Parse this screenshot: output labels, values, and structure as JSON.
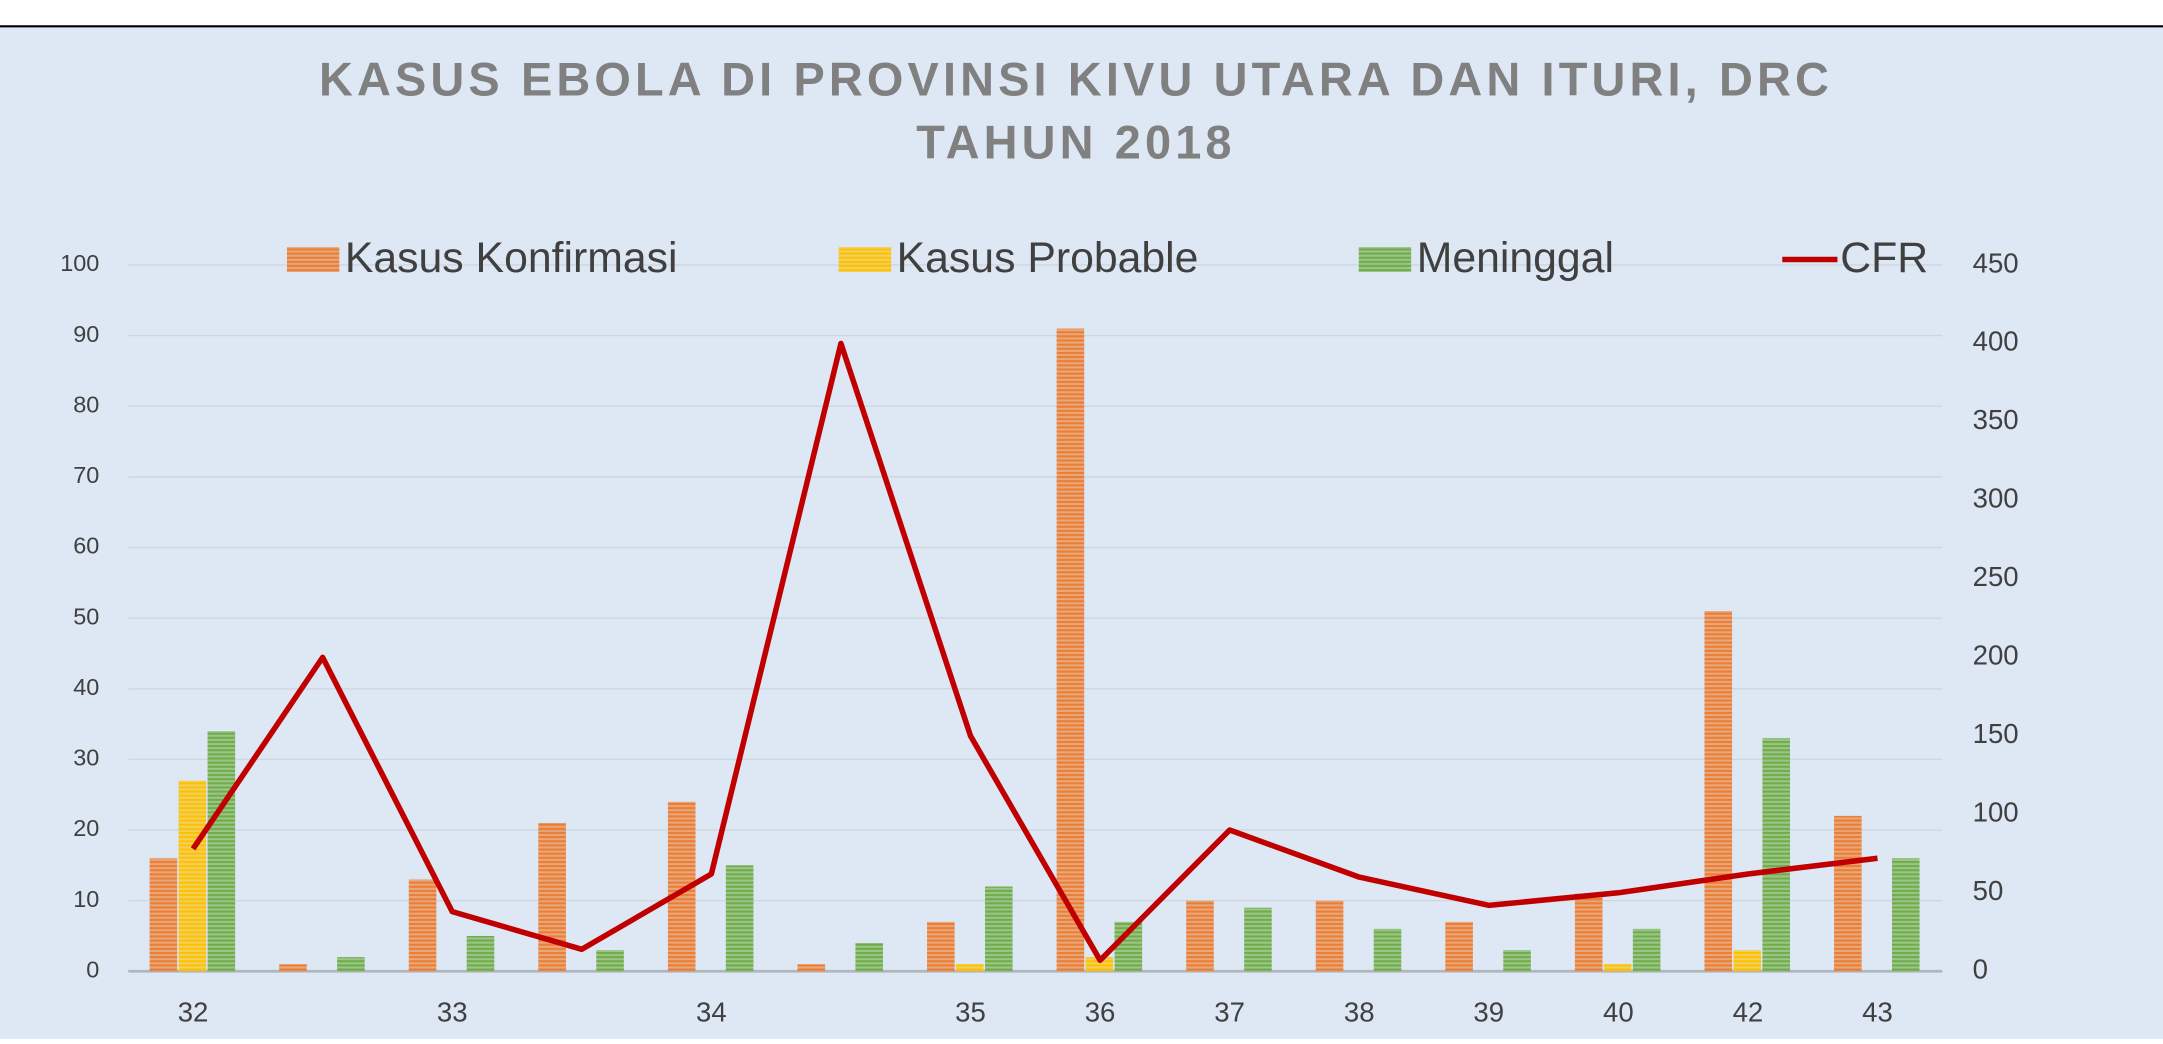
{
  "chart_data": {
    "type": "bar_line",
    "title": [
      "KASUS EBOLA DI PROVINSI KIVU UTARA DAN ITURI, DRC",
      "TAHUN 2018"
    ],
    "categories": [
      "32",
      null,
      "33",
      null,
      "34",
      null,
      "35",
      "36",
      "37",
      "38",
      "39",
      "40",
      "42",
      "43"
    ],
    "series": [
      {
        "name": "Kasus Konfirmasi",
        "color": "#ed7d31",
        "type": "bar",
        "values": [
          16,
          1,
          13,
          21,
          24,
          1,
          7,
          91,
          10,
          10,
          7,
          11,
          51,
          22
        ]
      },
      {
        "name": "Kasus Probable",
        "color": "#ffc000",
        "type": "bar",
        "values": [
          27,
          0,
          0,
          0,
          0,
          0,
          1,
          2,
          0,
          0,
          0,
          1,
          3,
          0
        ]
      },
      {
        "name": "Meninggal",
        "color": "#70ad47",
        "type": "bar",
        "values": [
          34,
          2,
          5,
          3,
          15,
          4,
          12,
          7,
          9,
          6,
          3,
          6,
          33,
          16
        ]
      },
      {
        "name": "CFR",
        "color": "#c00000",
        "type": "line",
        "axis": "y2",
        "values": [
          78,
          200,
          38,
          14,
          62,
          400,
          150,
          7,
          90,
          60,
          42,
          50,
          62,
          72
        ]
      }
    ],
    "ylim": [
      0,
      100
    ],
    "yticks": [
      0,
      10,
      20,
      30,
      40,
      50,
      60,
      70,
      80,
      90,
      100
    ],
    "y2lim": [
      0,
      450
    ],
    "y2ticks": [
      0,
      50,
      100,
      150,
      200,
      250,
      300,
      350,
      400,
      450
    ],
    "grid": true,
    "legend": "top"
  }
}
